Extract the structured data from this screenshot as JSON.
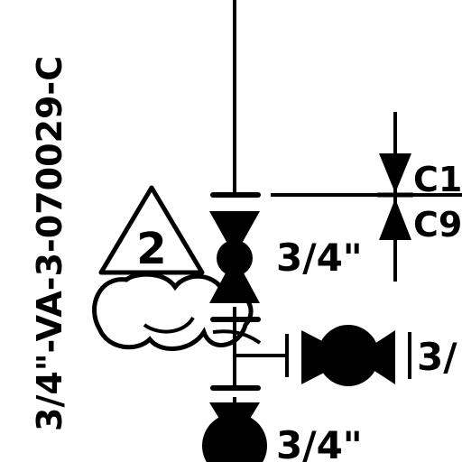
{
  "colors": {
    "ink": "#000000",
    "paper": "#ffffff"
  },
  "line_tag": "3/4\"-VA-3-070029-C",
  "callouts": {
    "triangle_number": "2"
  },
  "labels": {
    "valve_upper_size": "3/4\"",
    "valve_lower_size": "3/4\"",
    "branch_size": "3/",
    "check_top": "C1",
    "check_bottom": "C9"
  },
  "icons": [
    "gate-valve-icon",
    "check-valve-icon",
    "ball-valve-icon",
    "revision-triangle-icon",
    "cloud-outline-icon"
  ]
}
